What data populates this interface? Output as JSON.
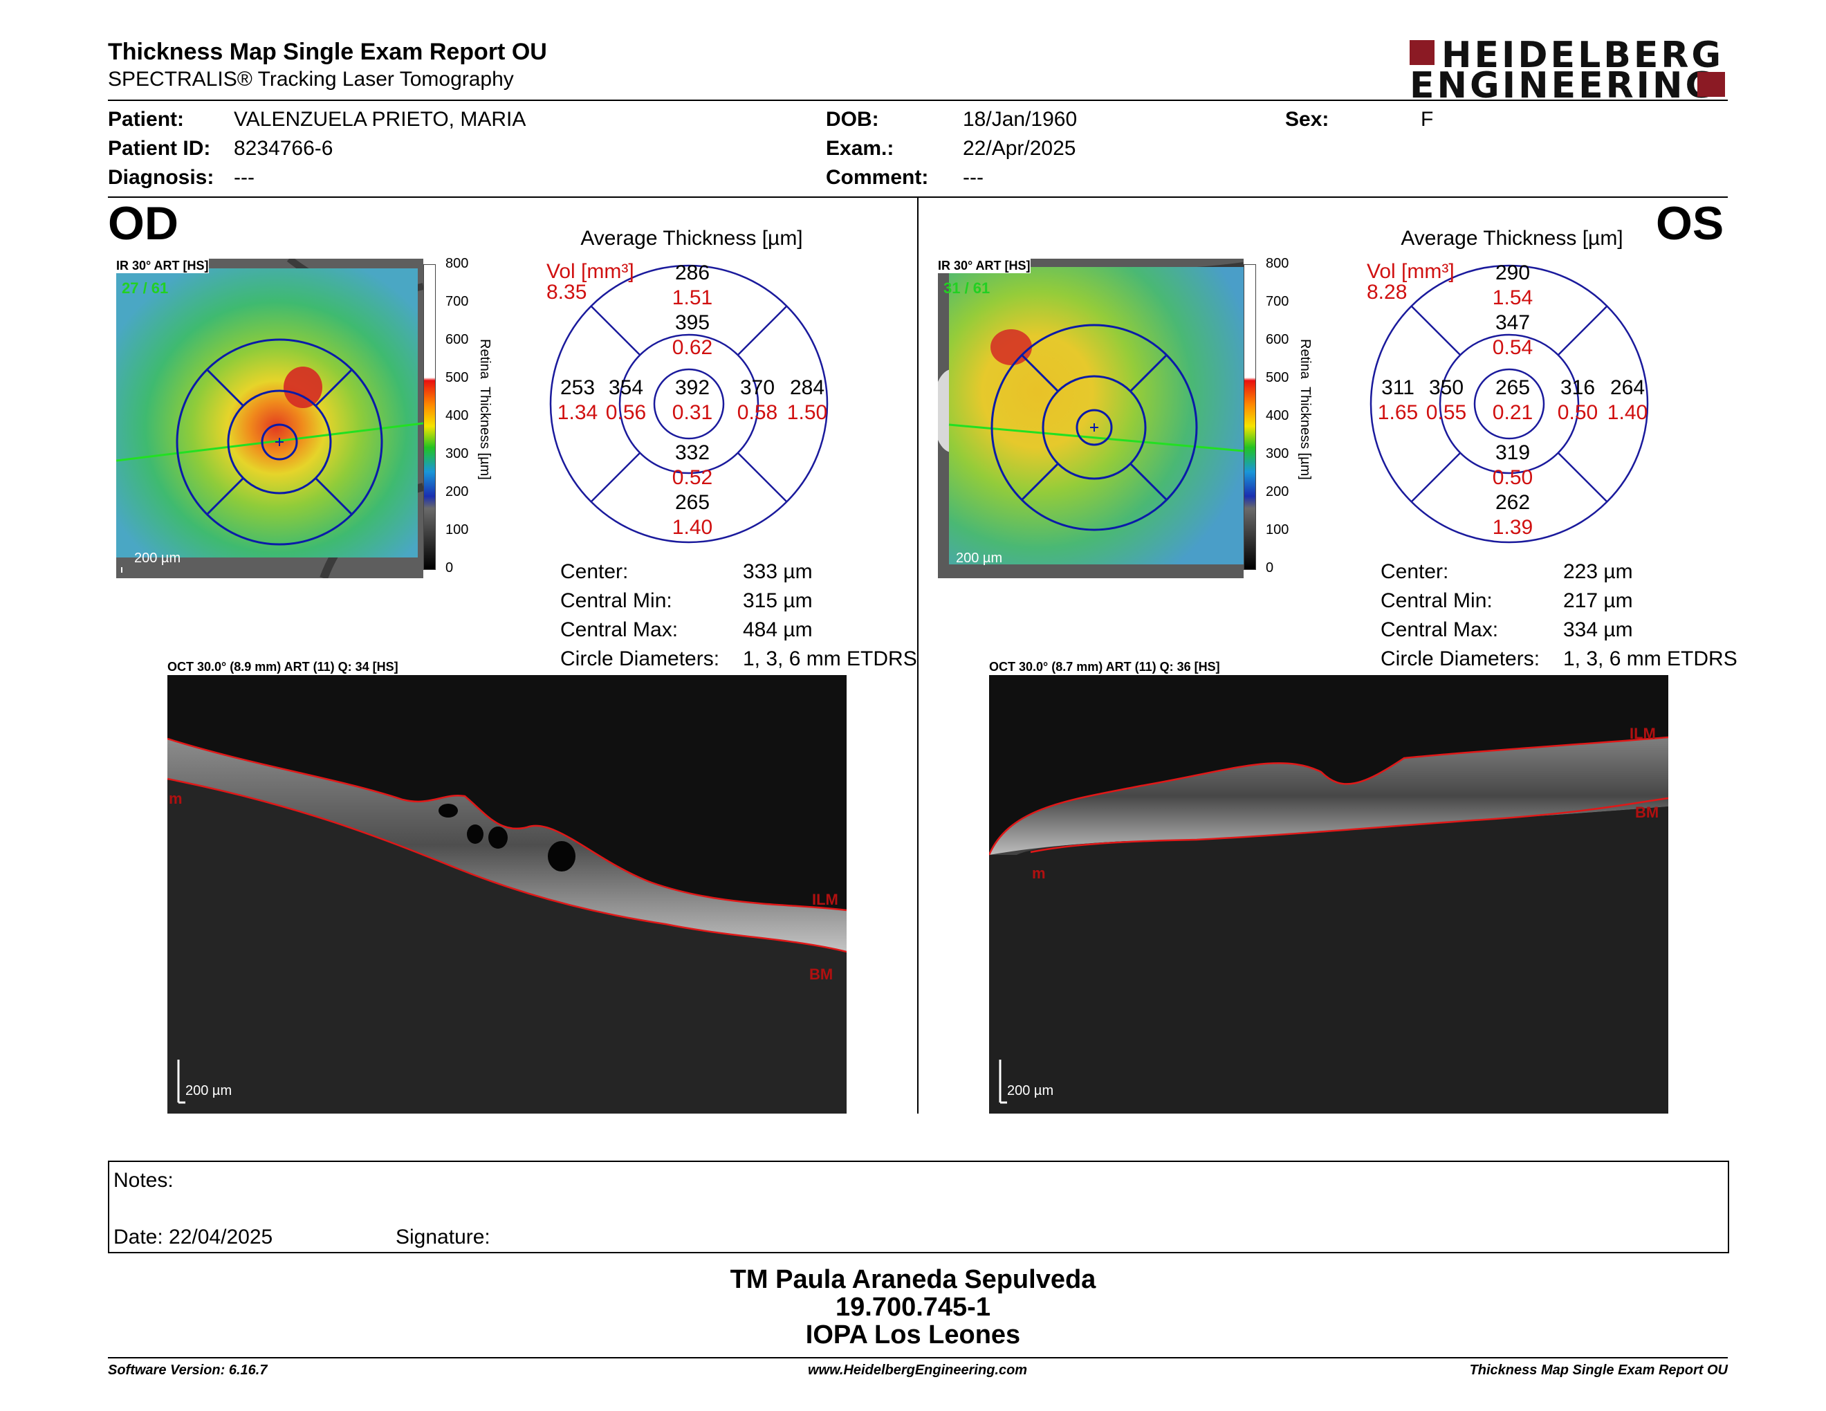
{
  "header": {
    "title": "Thickness Map Single Exam Report OU",
    "subtitle": "SPECTRALIS® Tracking Laser Tomography",
    "logo_line1": "HEIDELBERG",
    "logo_line2": "ENGINEERING",
    "brand_color": "#8b1a24"
  },
  "patient": {
    "patient_label": "Patient:",
    "patient_value": "VALENZUELA PRIETO, MARIA",
    "id_label": "Patient ID:",
    "id_value": "8234766-6",
    "diag_label": "Diagnosis:",
    "diag_value": "---",
    "dob_label": "DOB:",
    "dob_value": "18/Jan/1960",
    "exam_label": "Exam.:",
    "exam_value": "22/Apr/2025",
    "comment_label": "Comment:",
    "comment_value": "---",
    "sex_label": "Sex:",
    "sex_value": "F"
  },
  "colorbar": {
    "ticks": [
      "800",
      "700",
      "600",
      "500",
      "400",
      "300",
      "200",
      "100",
      "0"
    ],
    "label_word1": "Retina",
    "label_word2": "Thickness [µm]"
  },
  "od": {
    "eye": "OD",
    "ir_label": "IR 30° ART [HS]",
    "ir_counter": "27 / 61",
    "scale": "200 µm",
    "avg_title": "Average Thickness [µm]",
    "vol_label": "Vol [mm³]",
    "vol_value": "8.35",
    "sectors": {
      "sup_outer": "286",
      "sup_outer_vol": "1.51",
      "sup_inner": "395",
      "sup_inner_vol": "0.62",
      "tmp_outer": "253",
      "tmp_outer_vol": "1.34",
      "tmp_inner": "354",
      "tmp_inner_vol": "0.56",
      "center": "392",
      "center_vol": "0.31",
      "nas_inner": "370",
      "nas_inner_vol": "0.58",
      "nas_outer": "284",
      "nas_outer_vol": "1.50",
      "inf_inner": "332",
      "inf_inner_vol": "0.52",
      "inf_outer": "265",
      "inf_outer_vol": "1.40"
    },
    "stats": {
      "center_label": "Center:",
      "center_value": "333 µm",
      "min_label": "Central Min:",
      "min_value": "315 µm",
      "max_label": "Central Max:",
      "max_value": "484 µm",
      "diam_label": "Circle Diameters:",
      "diam_value": "1, 3, 6 mm ETDRS"
    },
    "oct_label": "OCT 30.0° (8.9 mm) ART (11) Q: 34 [HS]",
    "oct_ilm": "ILM",
    "oct_bm": "BM",
    "oct_m": "m",
    "oct_scale": "200 µm"
  },
  "os": {
    "eye": "OS",
    "ir_label": "IR 30° ART [HS]",
    "ir_counter": "31 / 61",
    "scale": "200 µm",
    "avg_title": "Average Thickness [µm]",
    "vol_label": "Vol [mm³]",
    "vol_value": "8.28",
    "sectors": {
      "sup_outer": "290",
      "sup_outer_vol": "1.54",
      "sup_inner": "347",
      "sup_inner_vol": "0.54",
      "tmp_outer": "311",
      "tmp_outer_vol": "1.65",
      "tmp_inner": "350",
      "tmp_inner_vol": "0.55",
      "center": "265",
      "center_vol": "0.21",
      "nas_inner": "316",
      "nas_inner_vol": "0.50",
      "nas_outer": "264",
      "nas_outer_vol": "1.40",
      "inf_inner": "319",
      "inf_inner_vol": "0.50",
      "inf_outer": "262",
      "inf_outer_vol": "1.39"
    },
    "stats": {
      "center_label": "Center:",
      "center_value": "223 µm",
      "min_label": "Central Min:",
      "min_value": "217 µm",
      "max_label": "Central Max:",
      "max_value": "334 µm",
      "diam_label": "Circle Diameters:",
      "diam_value": "1, 3, 6 mm ETDRS"
    },
    "oct_label": "OCT 30.0° (8.7 mm) ART (11) Q: 36 [HS]",
    "oct_ilm": "ILM",
    "oct_bm": "BM",
    "oct_m": "m",
    "oct_scale": "200 µm"
  },
  "notes": {
    "notes_label": "Notes:",
    "date_label": "Date: 22/04/2025",
    "signature_label": "Signature:"
  },
  "signature_block": {
    "line1": "TM Paula Araneda Sepulveda",
    "line2": "19.700.745-1",
    "line3": "IOPA Los Leones"
  },
  "footer": {
    "left": "Software Version: 6.16.7",
    "center": "www.HeidelbergEngineering.com",
    "right": "Thickness Map Single Exam Report OU"
  }
}
